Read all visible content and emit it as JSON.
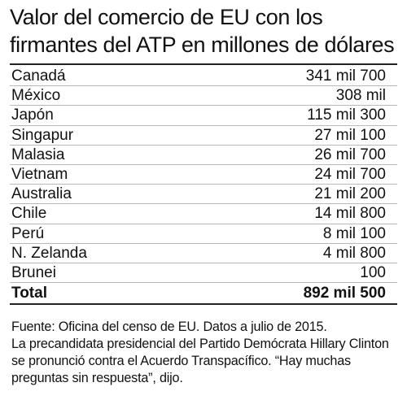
{
  "chart_data": {
    "type": "table",
    "title_line1": "Valor del comercio de EU con los",
    "title_line2": "firmantes del ATP en millones de dólares",
    "rows": [
      {
        "country": "Canadá",
        "value_label": "341 mil 700",
        "value": 341700
      },
      {
        "country": "México",
        "value_label": "308 mil",
        "value": 308000
      },
      {
        "country": "Japón",
        "value_label": "115 mil 300",
        "value": 115300
      },
      {
        "country": "Singapur",
        "value_label": "27 mil 100",
        "value": 27100
      },
      {
        "country": "Malasia",
        "value_label": "26 mil 700",
        "value": 26700
      },
      {
        "country": "Vietnam",
        "value_label": "24 mil 700",
        "value": 24700
      },
      {
        "country": "Australia",
        "value_label": "21 mil 200",
        "value": 21200
      },
      {
        "country": "Chile",
        "value_label": "14 mil 800",
        "value": 14800
      },
      {
        "country": "Perú",
        "value_label": "8 mil 100",
        "value": 8100
      },
      {
        "country": "N. Zelanda",
        "value_label": "4 mil 800",
        "value": 4800
      },
      {
        "country": "Brunei",
        "value_label": "100",
        "value": 100
      }
    ],
    "total": {
      "label": "Total",
      "value_label": "892 mil 500",
      "value": 892500
    }
  },
  "footer": {
    "source": "Fuente: Oficina del censo de EU. Datos a julio de 2015.",
    "note": "La precandidata presidencial del Partido Demócrata Hillary Clinton se pronunció contra el Acuerdo Transpacífico. “Hay muchas preguntas sin respuesta”, dijo."
  }
}
